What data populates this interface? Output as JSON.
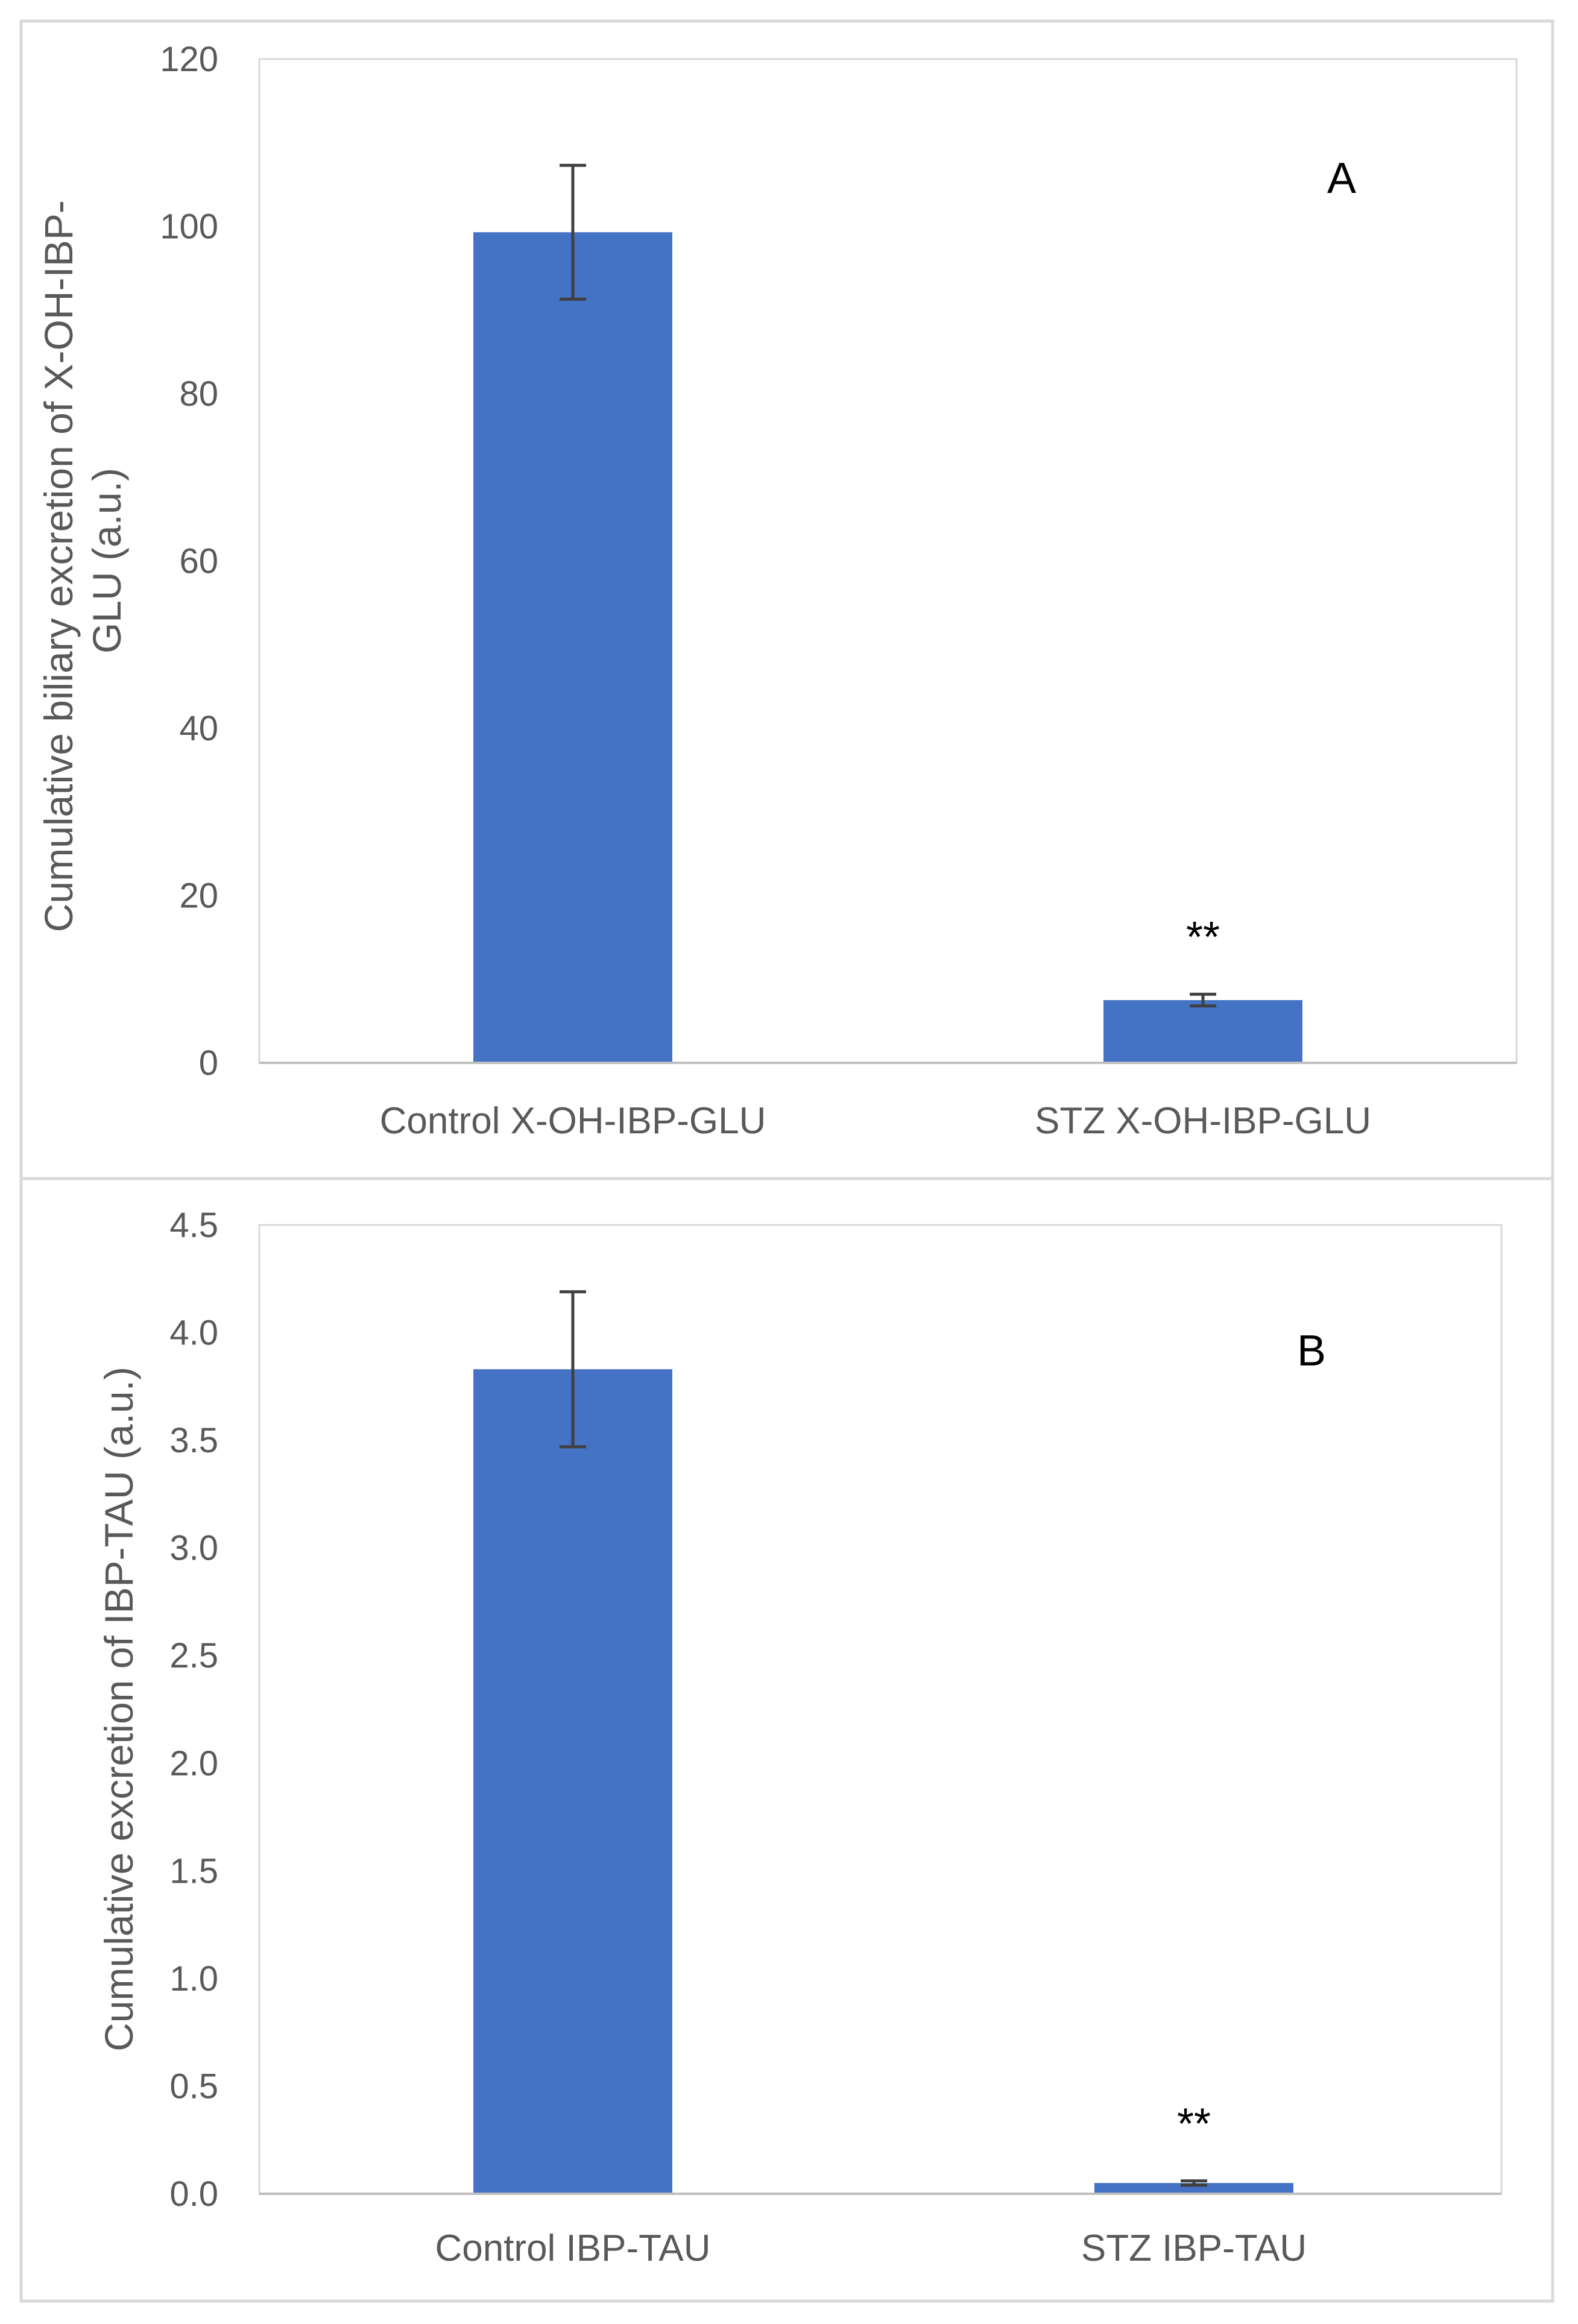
{
  "chart_data": [
    {
      "type": "bar",
      "panel_label": "A",
      "categories": [
        "Control X-OH-IBP-GLU",
        "STZ X-OH-IBP-GLU"
      ],
      "values": [
        99.3,
        7.5
      ],
      "errors": [
        8.0,
        0.7
      ],
      "significance": [
        "",
        "**"
      ],
      "ylabel_lines": [
        "Cumulative biliary excretion of X-OH-IBP-",
        "GLU (a.u.)"
      ],
      "xlabel": "",
      "ylim": [
        0,
        120
      ],
      "yticks": [
        0,
        20,
        40,
        60,
        80,
        100,
        120
      ],
      "ytick_labels": [
        "0",
        "20",
        "40",
        "60",
        "80",
        "100",
        "120"
      ],
      "bar_color": "#4472c4"
    },
    {
      "type": "bar",
      "panel_label": "B",
      "categories": [
        "Control IBP-TAU",
        "STZ IBP-TAU"
      ],
      "values": [
        3.83,
        0.05
      ],
      "errors": [
        0.36,
        0.01
      ],
      "significance": [
        "",
        "**"
      ],
      "ylabel_lines": [
        "Cumulative excretion of IBP-TAU (a.u.)"
      ],
      "xlabel": "",
      "ylim": [
        0,
        4.5
      ],
      "yticks": [
        0,
        0.5,
        1.0,
        1.5,
        2.0,
        2.5,
        3.0,
        3.5,
        4.0,
        4.5
      ],
      "ytick_labels": [
        "0.0",
        "0.5",
        "1.0",
        "1.5",
        "2.0",
        "2.5",
        "3.0",
        "3.5",
        "4.0",
        "4.5"
      ],
      "bar_color": "#4472c4"
    }
  ]
}
